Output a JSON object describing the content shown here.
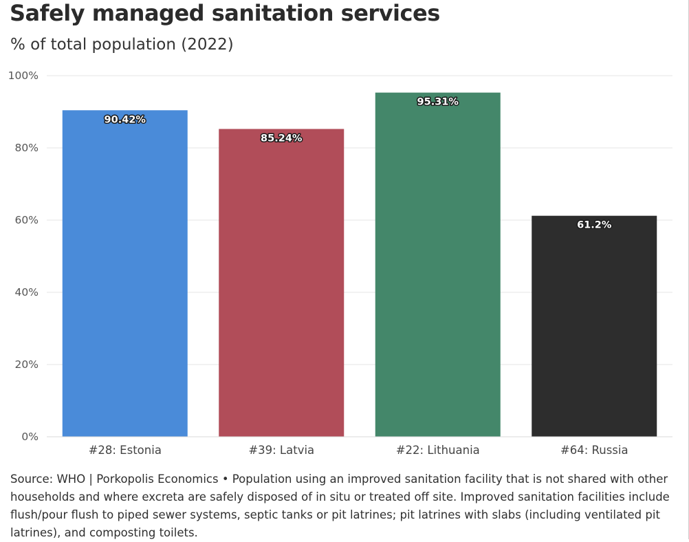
{
  "title": "Safely managed sanitation services",
  "subtitle": "% of total population (2022)",
  "source": "Source: WHO | Porkopolis Economics • Population using an improved sanitation facility that is not shared with other households and where excreta are safely disposed of in situ or treated off site. Improved sanitation facilities include flush/pour flush to piped sewer systems, septic tanks or pit latrines; pit latrines with slabs (including ventilated pit latrines), and composting toilets.",
  "chart_data": {
    "type": "bar",
    "title": "Safely managed sanitation services",
    "subtitle": "% of total population (2022)",
    "xlabel": "",
    "ylabel": "",
    "ylim": [
      0,
      100
    ],
    "yticks": [
      0,
      20,
      40,
      60,
      80,
      100
    ],
    "ytick_labels": [
      "0%",
      "20%",
      "40%",
      "60%",
      "80%",
      "100%"
    ],
    "grid": true,
    "categories": [
      "#28: Estonia",
      "#39: Latvia",
      "#22: Lithuania",
      "#64: Russia"
    ],
    "values": [
      90.42,
      85.24,
      95.31,
      61.2
    ],
    "value_labels": [
      "90.42%",
      "85.24%",
      "95.31%",
      "61.2%"
    ],
    "colors": [
      "#4a8bd9",
      "#b14d59",
      "#44876a",
      "#2d2d2d"
    ]
  }
}
